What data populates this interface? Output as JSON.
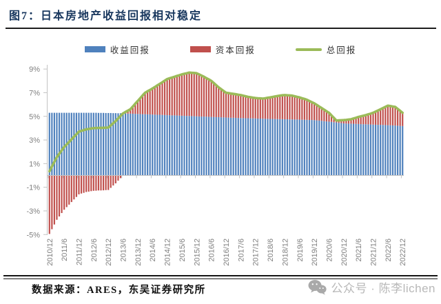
{
  "page": {
    "title": "图7：日本房地产收益回报相对稳定",
    "title_color": "#17365d",
    "source_note": "数据来源：ARES，东吴证券研究所",
    "watermark_text": "公众号 · 陈李lichen"
  },
  "chart_data": {
    "type": "bar",
    "subtype": "stacked bars with line overlay",
    "title": "日本房地产收益回报相对稳定",
    "frequency": "monthly",
    "x_start": "2010/12",
    "x_end": "2022/12",
    "x_tick_labels": [
      "2010/12",
      "2011/6",
      "2011/12",
      "2012/6",
      "2012/12",
      "2013/6",
      "2013/12",
      "2014/6",
      "2014/12",
      "2015/6",
      "2015/12",
      "2016/6",
      "2016/12",
      "2017/6",
      "2017/12",
      "2018/6",
      "2018/12",
      "2019/6",
      "2019/12",
      "2020/6",
      "2020/12",
      "2021/6",
      "2021/12",
      "2022/6",
      "2022/12"
    ],
    "y_ticks": [
      9,
      7,
      5,
      3,
      1,
      -1,
      -3,
      -5
    ],
    "y_unit": "%",
    "ylim": [
      -5.5,
      9.5
    ],
    "grid": false,
    "legend_position": "top",
    "axis_color": "#c3c3c3",
    "label_color": "#7f7f7f",
    "series": [
      {
        "name": "收益回报",
        "type": "bar",
        "color": "#4f81bd",
        "values": [
          5.3,
          5.3,
          5.3,
          5.3,
          5.3,
          5.3,
          5.3,
          5.3,
          5.3,
          5.3,
          5.3,
          5.3,
          5.3,
          5.3,
          5.3,
          5.3,
          5.3,
          5.3,
          5.3,
          5.3,
          5.29,
          5.29,
          5.29,
          5.28,
          5.28,
          5.28,
          5.27,
          5.27,
          5.26,
          5.26,
          5.25,
          5.24,
          5.23,
          5.23,
          5.22,
          5.21,
          5.2,
          5.19,
          5.18,
          5.18,
          5.17,
          5.16,
          5.15,
          5.14,
          5.13,
          5.13,
          5.12,
          5.11,
          5.1,
          5.09,
          5.08,
          5.08,
          5.07,
          5.06,
          5.05,
          5.04,
          5.03,
          5.03,
          5.02,
          5.01,
          5.0,
          4.99,
          4.98,
          4.98,
          4.97,
          4.96,
          4.95,
          4.94,
          4.93,
          4.93,
          4.92,
          4.91,
          4.9,
          4.89,
          4.88,
          4.88,
          4.87,
          4.86,
          4.85,
          4.85,
          4.84,
          4.84,
          4.83,
          4.83,
          4.82,
          4.81,
          4.81,
          4.8,
          4.79,
          4.79,
          4.78,
          4.78,
          4.77,
          4.77,
          4.76,
          4.76,
          4.75,
          4.75,
          4.74,
          4.74,
          4.73,
          4.73,
          4.72,
          4.71,
          4.71,
          4.7,
          4.69,
          4.69,
          4.68,
          4.66,
          4.64,
          4.62,
          4.59,
          4.57,
          4.55,
          4.53,
          4.5,
          4.48,
          4.45,
          4.43,
          4.4,
          4.39,
          4.38,
          4.38,
          4.37,
          4.36,
          4.35,
          4.34,
          4.33,
          4.33,
          4.32,
          4.31,
          4.3,
          4.29,
          4.28,
          4.28,
          4.27,
          4.26,
          4.25,
          4.24,
          4.23,
          4.22,
          4.21,
          4.19,
          4.18
        ]
      },
      {
        "name": "资本回报",
        "type": "bar",
        "color": "#c0504d",
        "values": [
          -4.95,
          -4.55,
          -4.15,
          -3.75,
          -3.47,
          -3.18,
          -2.9,
          -2.68,
          -2.47,
          -2.25,
          -2.03,
          -1.82,
          -1.6,
          -1.53,
          -1.47,
          -1.4,
          -1.37,
          -1.33,
          -1.3,
          -1.29,
          -1.27,
          -1.27,
          -1.26,
          -1.24,
          -1.23,
          -1.05,
          -0.85,
          -0.67,
          -0.44,
          -0.23,
          0.0,
          0.13,
          0.25,
          0.37,
          0.61,
          0.86,
          1.1,
          1.34,
          1.59,
          1.82,
          1.95,
          2.07,
          2.2,
          2.34,
          2.49,
          2.62,
          2.76,
          2.91,
          3.05,
          3.13,
          3.2,
          3.27,
          3.35,
          3.42,
          3.5,
          3.56,
          3.62,
          3.67,
          3.66,
          3.66,
          3.65,
          3.56,
          3.47,
          3.37,
          3.26,
          3.16,
          3.05,
          2.88,
          2.7,
          2.52,
          2.38,
          2.24,
          2.1,
          2.08,
          2.05,
          2.02,
          2.0,
          1.97,
          1.95,
          1.9,
          1.86,
          1.81,
          1.79,
          1.75,
          1.73,
          1.72,
          1.71,
          1.7,
          1.74,
          1.78,
          1.82,
          1.86,
          1.91,
          1.95,
          1.99,
          2.02,
          2.05,
          2.03,
          2.03,
          2.01,
          1.97,
          1.92,
          1.88,
          1.82,
          1.76,
          1.7,
          1.61,
          1.51,
          1.42,
          1.31,
          1.19,
          1.08,
          0.98,
          0.86,
          0.75,
          0.55,
          0.37,
          0.17,
          0.21,
          0.24,
          0.28,
          0.31,
          0.35,
          0.37,
          0.45,
          0.52,
          0.6,
          0.66,
          0.72,
          0.77,
          0.85,
          0.92,
          1.0,
          1.11,
          1.22,
          1.32,
          1.43,
          1.54,
          1.65,
          1.63,
          1.6,
          1.58,
          1.42,
          1.28,
          1.12
        ]
      },
      {
        "name": "总回报",
        "type": "line",
        "color": "#9bbb59",
        "values": [
          0.35,
          0.75,
          1.15,
          1.55,
          1.83,
          2.12,
          2.4,
          2.62,
          2.83,
          3.05,
          3.27,
          3.48,
          3.7,
          3.77,
          3.83,
          3.9,
          3.93,
          3.97,
          4.0,
          4.01,
          4.02,
          4.02,
          4.03,
          4.04,
          4.05,
          4.23,
          4.42,
          4.6,
          4.82,
          5.03,
          5.25,
          5.37,
          5.48,
          5.6,
          5.83,
          6.07,
          6.3,
          6.53,
          6.77,
          7.0,
          7.12,
          7.23,
          7.35,
          7.48,
          7.62,
          7.75,
          7.88,
          8.02,
          8.15,
          8.22,
          8.28,
          8.35,
          8.42,
          8.48,
          8.55,
          8.6,
          8.65,
          8.7,
          8.68,
          8.67,
          8.65,
          8.55,
          8.45,
          8.35,
          8.23,
          8.12,
          8.0,
          7.82,
          7.63,
          7.45,
          7.3,
          7.15,
          7.0,
          6.97,
          6.93,
          6.9,
          6.87,
          6.83,
          6.8,
          6.75,
          6.7,
          6.65,
          6.62,
          6.58,
          6.55,
          6.53,
          6.52,
          6.5,
          6.53,
          6.57,
          6.6,
          6.64,
          6.68,
          6.72,
          6.75,
          6.78,
          6.8,
          6.78,
          6.77,
          6.75,
          6.7,
          6.65,
          6.6,
          6.53,
          6.47,
          6.4,
          6.3,
          6.2,
          6.1,
          5.97,
          5.83,
          5.7,
          5.57,
          5.43,
          5.3,
          5.08,
          4.87,
          4.65,
          4.66,
          4.67,
          4.68,
          4.7,
          4.73,
          4.75,
          4.82,
          4.88,
          4.95,
          5.0,
          5.05,
          5.1,
          5.17,
          5.23,
          5.3,
          5.4,
          5.5,
          5.6,
          5.7,
          5.8,
          5.9,
          5.87,
          5.83,
          5.8,
          5.63,
          5.47,
          5.3
        ]
      }
    ]
  }
}
